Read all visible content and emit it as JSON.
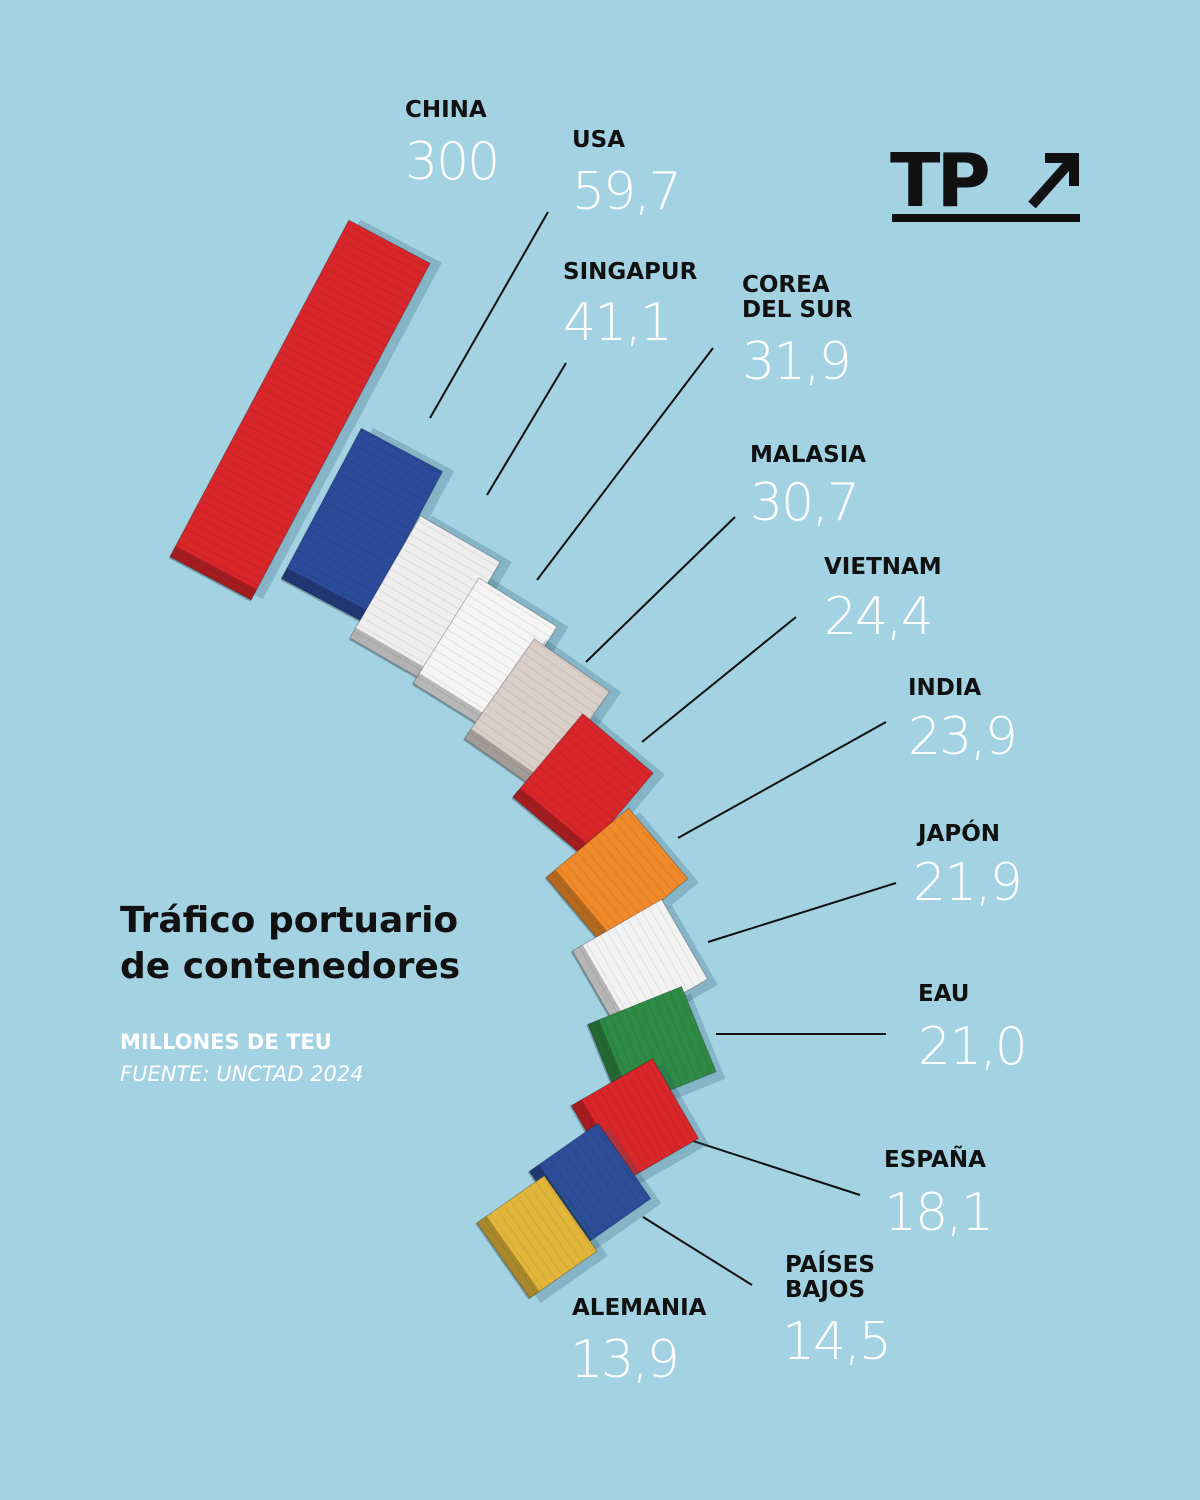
{
  "logo": "TP",
  "chart_data": {
    "type": "pictorial",
    "title": "Tráfico portuario de contenedores",
    "subtitle": "MILLONES DE TEU",
    "source": "FUENTE: UNCTAD 2024",
    "categories": [
      "CHINA",
      "USA",
      "SINGAPUR",
      "COREA DEL SUR",
      "MALASIA",
      "VIETNAM",
      "INDIA",
      "JAPÓN",
      "EAU",
      "ESPAÑA",
      "PAÍSES BAJOS",
      "ALEMANIA"
    ],
    "values": [
      300,
      59.7,
      41.1,
      31.9,
      30.7,
      24.4,
      23.9,
      21.9,
      21.0,
      18.1,
      14.5,
      13.9
    ],
    "value_labels": [
      "300",
      "59,7",
      "41,1",
      "31,9",
      "30,7",
      "24,4",
      "23,9",
      "21,9",
      "21,0",
      "18,1",
      "14,5",
      "13,9"
    ],
    "colors": [
      "#d8262b",
      "#2b4a9a",
      "#eeeeee",
      "#f4f4f4",
      "#d9cfc8",
      "#d8262b",
      "#f08a2a",
      "#f2f2f2",
      "#2f8a45",
      "#d8262b",
      "#2d4d9a",
      "#e2b63a"
    ]
  }
}
